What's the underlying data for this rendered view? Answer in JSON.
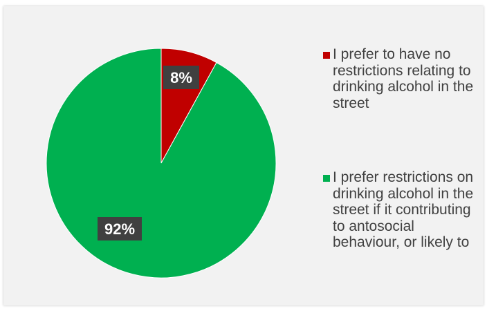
{
  "chart_data": {
    "type": "pie",
    "categories": [
      "I prefer to have no restrictions relating to drinking alcohol in the street",
      "I prefer restrictions on drinking alcohol in the street if it contributing to antosocial behaviour, or likely to"
    ],
    "values": [
      8,
      92
    ],
    "data_labels": [
      "8%",
      "92%"
    ],
    "colors": [
      "#c00000",
      "#00b050"
    ],
    "legend": {
      "position": "right",
      "entries": [
        "I prefer to have no restrictions relating to drinking alcohol in the street",
        "I prefer restrictions on drinking alcohol in the street if it contributing to antosocial behaviour, or likely to"
      ]
    }
  }
}
